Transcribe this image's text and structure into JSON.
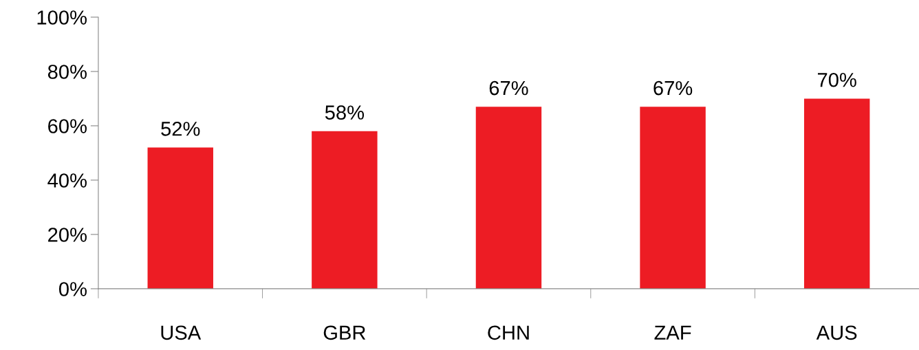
{
  "chart_data": {
    "type": "bar",
    "categories": [
      "USA",
      "GBR",
      "CHN",
      "ZAF",
      "AUS"
    ],
    "values": [
      52,
      58,
      67,
      67,
      70
    ],
    "value_labels": [
      "52%",
      "58%",
      "67%",
      "67%",
      "70%"
    ],
    "color": "#ed1c24",
    "ylim": [
      0,
      100
    ],
    "yticks": [
      {
        "value": 0,
        "label": "0%"
      },
      {
        "value": 20,
        "label": "20%"
      },
      {
        "value": 40,
        "label": "40%"
      },
      {
        "value": 60,
        "label": "60%"
      },
      {
        "value": 80,
        "label": "80%"
      },
      {
        "value": 100,
        "label": "100%"
      }
    ],
    "grid": false,
    "legend": false
  }
}
